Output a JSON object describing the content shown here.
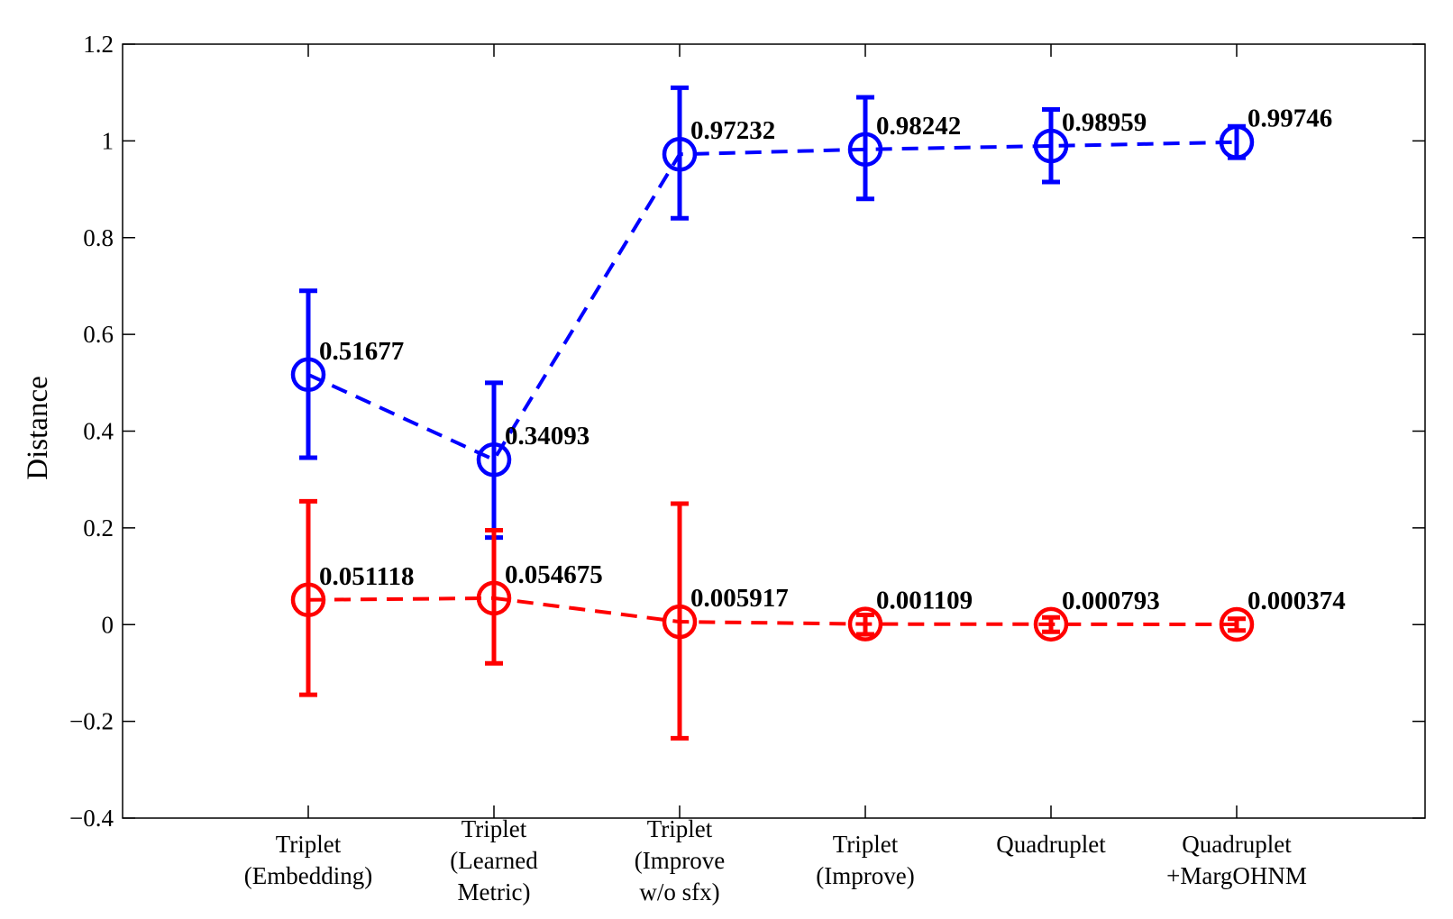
{
  "chart_data": {
    "type": "line",
    "title": "",
    "xlabel": "",
    "ylabel": "Distance",
    "ylim": [
      -0.4,
      1.2
    ],
    "yticks": [
      -0.4,
      -0.2,
      0,
      0.2,
      0.4,
      0.6,
      0.8,
      1,
      1.2
    ],
    "ytick_labels": [
      "−0.4",
      "−0.2",
      "0",
      "0.2",
      "0.4",
      "0.6",
      "0.8",
      "1",
      "1.2"
    ],
    "grid": false,
    "categories": [
      [
        "Triplet",
        "(Embedding)"
      ],
      [
        "Triplet",
        "(Learned",
        "Metric)"
      ],
      [
        "Triplet",
        "(Improve",
        "w/o sfx)"
      ],
      [
        "Triplet",
        "(Improve)"
      ],
      [
        "Quadruplet"
      ],
      [
        "Quadruplet",
        "+MargOHNM"
      ]
    ],
    "series": [
      {
        "color": "#0000ff",
        "line_style": "dashed",
        "marker": "circle-open",
        "values": [
          0.51677,
          0.34093,
          0.97232,
          0.98242,
          0.98959,
          0.99746
        ],
        "labels": [
          "0.51677",
          "0.34093",
          "0.97232",
          "0.98242",
          "0.98959",
          "0.99746"
        ],
        "err_low": [
          0.345,
          0.18,
          0.84,
          0.88,
          0.915,
          0.965
        ],
        "err_high": [
          0.69,
          0.5,
          1.11,
          1.09,
          1.065,
          1.03
        ]
      },
      {
        "color": "#ff0000",
        "line_style": "dashed",
        "marker": "circle-open",
        "values": [
          0.051118,
          0.054675,
          0.005917,
          0.001109,
          0.000793,
          0.000374
        ],
        "labels": [
          "0.051118",
          "0.054675",
          "0.005917",
          "0.001109",
          "0.000793",
          "0.000374"
        ],
        "err_low": [
          -0.145,
          -0.08,
          -0.235,
          -0.02,
          -0.015,
          -0.012
        ],
        "err_high": [
          0.255,
          0.195,
          0.25,
          0.02,
          0.015,
          0.012
        ]
      }
    ]
  }
}
